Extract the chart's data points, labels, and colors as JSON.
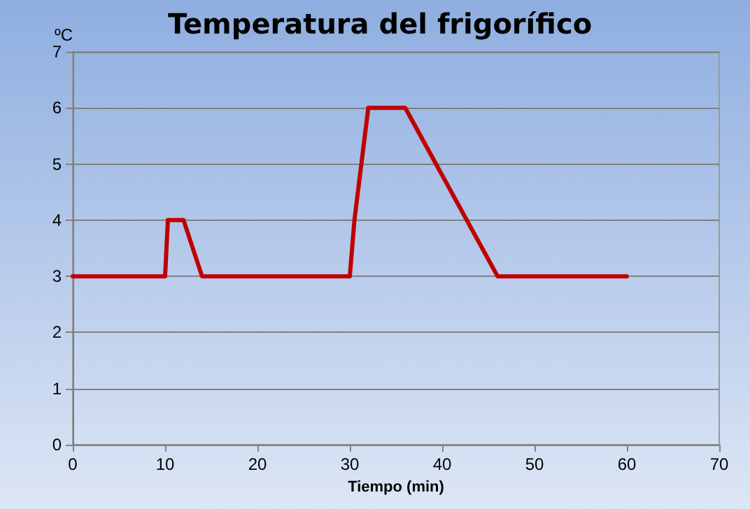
{
  "chart_data": {
    "type": "line",
    "title": "Temperatura del frigorífico",
    "xlabel": "Tiempo (min)",
    "ylabel": "ºC",
    "x": [
      0,
      10,
      10.3,
      12,
      14,
      30,
      30.5,
      32,
      36,
      46,
      60
    ],
    "series": [
      {
        "color": "#c00000",
        "values": [
          3,
          3,
          4,
          4,
          3,
          3,
          4,
          6,
          6,
          3,
          3
        ]
      }
    ],
    "xlim": [
      0,
      70
    ],
    "xticks": [
      0,
      10,
      20,
      30,
      40,
      50,
      60,
      70
    ],
    "ylim": [
      0,
      7
    ],
    "yticks": [
      0,
      1,
      2,
      3,
      4,
      5,
      6,
      7
    ],
    "grid": "y",
    "marker": "none",
    "line_style": "solid"
  }
}
